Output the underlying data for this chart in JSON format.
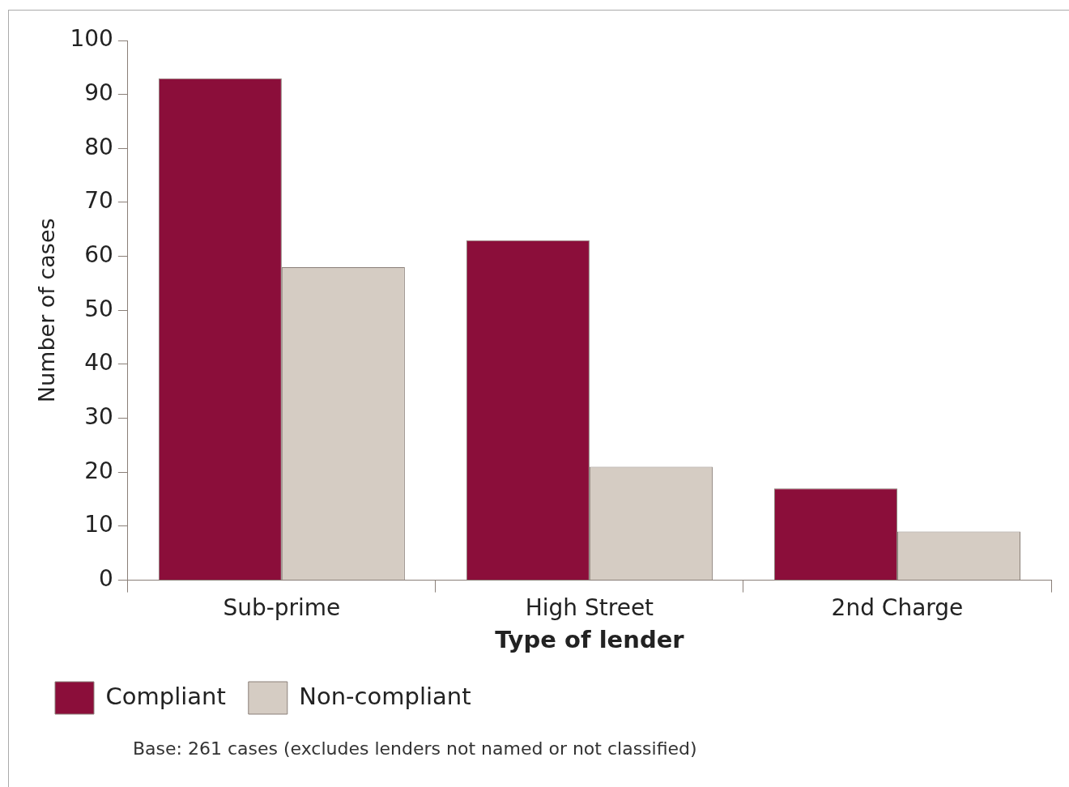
{
  "chart_data": {
    "type": "bar",
    "xlabel": "Type of lender",
    "ylabel": "Number of cases",
    "categories": [
      "Sub-prime",
      "High Street",
      "2nd Charge"
    ],
    "series": [
      {
        "name": "Compliant",
        "color": "#8b0e3a",
        "values": [
          93,
          63,
          17
        ]
      },
      {
        "name": "Non-compliant",
        "color": "#d5ccc3",
        "values": [
          58,
          21,
          9
        ]
      }
    ],
    "ylim": [
      0,
      100
    ],
    "yticks": [
      0,
      10,
      20,
      30,
      40,
      50,
      60,
      70,
      80,
      90,
      100
    ],
    "legend": "bottom left",
    "annotations": [
      "Base: 261 cases (excludes lenders not named or not classified)"
    ]
  }
}
